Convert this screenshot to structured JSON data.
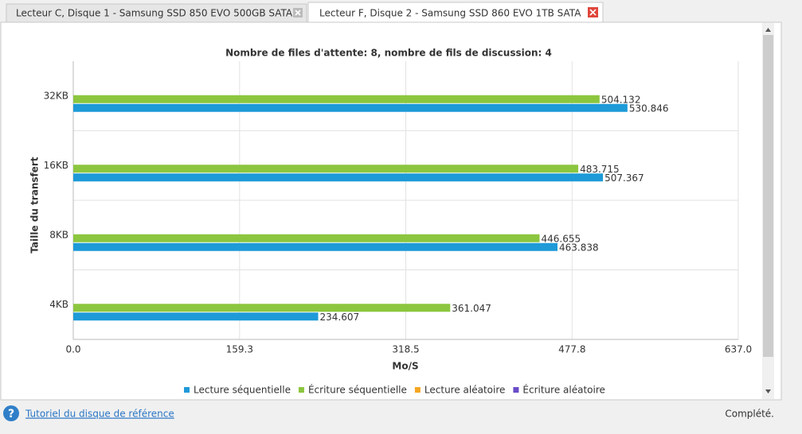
{
  "tabs": [
    "Lecteur C, Disque 1 - Samsung SSD 850 EVO 500GB SATA",
    "Lecteur F, Disque 2 - Samsung SSD 860 EVO 1TB SATA"
  ],
  "chart_data": {
    "type": "barh",
    "title": "Nombre de files d'attente: 8, nombre de fils de discussion: 4",
    "x_label": "Mo/S",
    "y_label": "Taille du transfert",
    "categories": [
      "32KB",
      "16KB",
      "8KB",
      "4KB"
    ],
    "series": [
      {
        "name": "Lecture séquentielle",
        "color": "#1e9ad8",
        "values": [
          530.846,
          507.367,
          463.838,
          234.607
        ]
      },
      {
        "name": "Écriture séquentielle",
        "color": "#8cc63f",
        "values": [
          504.132,
          483.715,
          446.655,
          361.047
        ]
      },
      {
        "name": "Lecture aléatoire",
        "color": "#f5a623",
        "values": [
          null,
          null,
          null,
          null
        ]
      },
      {
        "name": "Écriture aléatoire",
        "color": "#6a4cc8",
        "values": [
          null,
          null,
          null,
          null
        ]
      }
    ],
    "xlim": [
      0,
      637
    ],
    "xticks": [
      {
        "value": 0,
        "label": "0.0"
      },
      159.3,
      318.5,
      477.8,
      {
        "value": 637,
        "label": "637.0"
      }
    ],
    "grid": true,
    "legend": "bottom"
  },
  "footer": {
    "link": "Tutoriel du disque de référence",
    "status": "Complété."
  }
}
